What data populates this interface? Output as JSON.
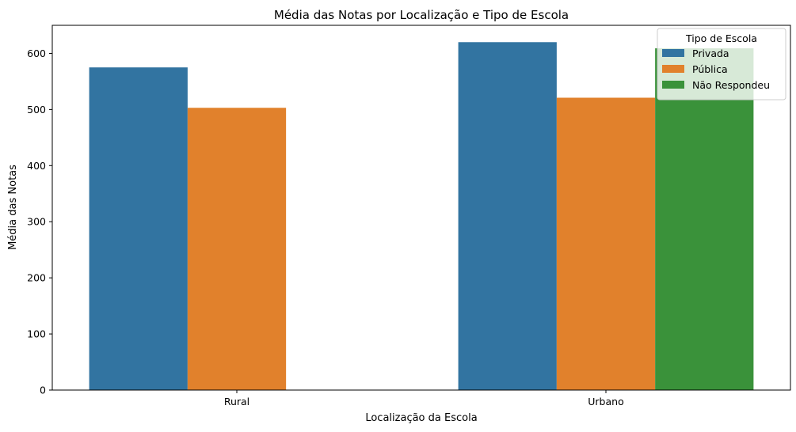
{
  "chart_data": {
    "type": "bar",
    "title": "Média das Notas por Localização e Tipo de Escola",
    "xlabel": "Localização da Escola",
    "ylabel": "Média das Notas",
    "categories": [
      "Rural",
      "Urbano"
    ],
    "ylim": [
      0,
      650
    ],
    "yticks": [
      0,
      100,
      200,
      300,
      400,
      500,
      600
    ],
    "grid": false,
    "legend": {
      "title": "Tipo de Escola",
      "placement": "top-right"
    },
    "series": [
      {
        "name": "Privada",
        "color": "#3274a1",
        "values": [
          575,
          620
        ]
      },
      {
        "name": "Pública",
        "color": "#e1812c",
        "values": [
          503,
          521
        ]
      },
      {
        "name": "Não Respondeu",
        "color": "#3a923a",
        "values": [
          null,
          609
        ]
      }
    ]
  }
}
